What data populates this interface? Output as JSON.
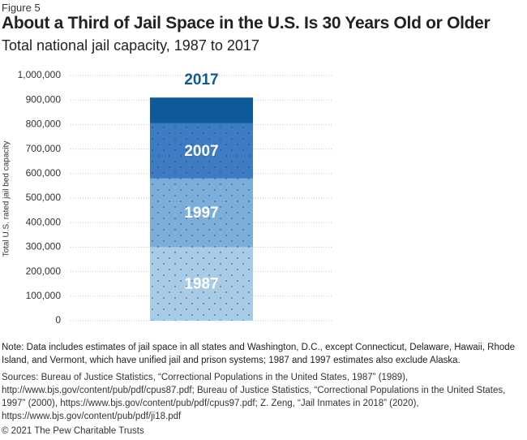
{
  "chart_data": {
    "type": "bar",
    "stacked": true,
    "figure_label": "Figure 5",
    "title": "About a Third of Jail Space in the U.S. Is 30 Years Old or Older",
    "subtitle": "Total national jail capacity, 1987 to 2017",
    "y_label": "Total U.S. rated jail bed capacity",
    "categories": [
      null
    ],
    "series": [
      {
        "name": "1987",
        "color": "#a9cce6",
        "pattern": "dots",
        "values": [
          300000
        ]
      },
      {
        "name": "1997",
        "color": "#7caed9",
        "pattern": "dots",
        "values": [
          280000
        ]
      },
      {
        "name": "2007",
        "color": "#3d7cc2",
        "pattern": "dots",
        "values": [
          225000
        ]
      },
      {
        "name": "2017",
        "color": "#0e5a9b",
        "values": [
          105000
        ]
      }
    ],
    "ylim": [
      0,
      1000000
    ],
    "yticks": [
      0,
      {
        "value": 100000,
        "label": "100,000"
      },
      {
        "value": 200000,
        "label": "200,000"
      },
      {
        "value": 300000,
        "label": "300,000"
      },
      {
        "value": 400000,
        "label": "400,000"
      },
      {
        "value": 500000,
        "label": "500,000"
      },
      {
        "value": 600000,
        "label": "600,000"
      },
      {
        "value": 700000,
        "label": "700,000"
      },
      {
        "value": 800000,
        "label": "800,000"
      },
      {
        "value": 900000,
        "label": "900,000"
      },
      {
        "value": 1000000,
        "label": "1,000,000"
      }
    ],
    "grid": true,
    "note": "Note: Data includes estimates of jail space in all states and Washington, D.C., except Connecticut, Delaware, Hawaii, Rhode Island, and Vermont, which have unified jail and prison systems; 1987 and 1997 estimates also exclude Alaska.",
    "source": "Sources: Bureau of Justice Statistics, “Correctional Populations in the United States, 1987” (1989), http://www.bjs.gov/content/pub/pdf/cpus87.pdf; Bureau of Justice Statistics, “Correctional Populations in the United States, 1997” (2000), https://www.bjs.gov/content/pub/pdf/cpus97.pdf; Z. Zeng, “Jail Inmates in 2018” (2020), https://www.bjs.gov/content/pub/pdf/ji18.pdf",
    "copyright": "© 2021 The Pew Charitable Trusts"
  }
}
